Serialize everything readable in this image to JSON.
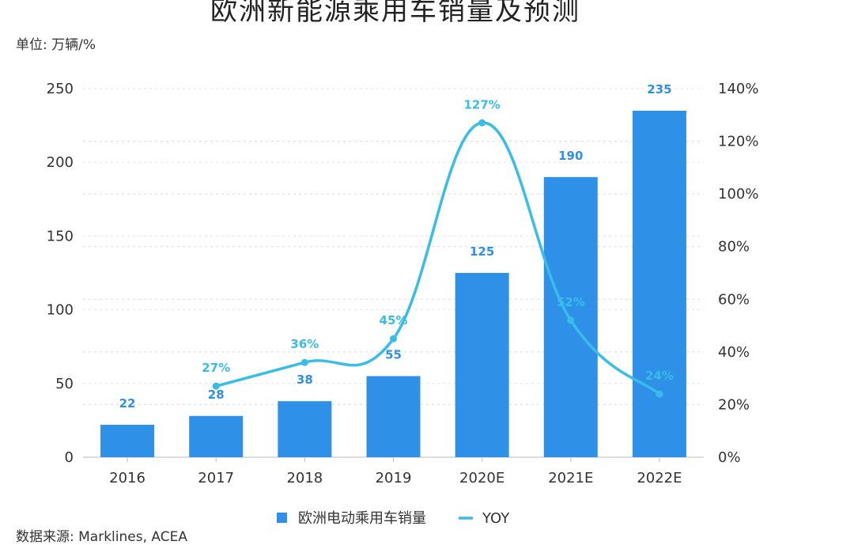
{
  "chart_data": {
    "type": "bar",
    "title": "欧洲新能源乘用车销量及预测",
    "unit": "单位: 万辆/%",
    "source": "数据来源: Marklines, ACEA",
    "categories": [
      "2016",
      "2017",
      "2018",
      "2019",
      "2020E",
      "2021E",
      "2022E"
    ],
    "series": [
      {
        "name": "欧洲电动乘用车销量",
        "type": "bar",
        "axis": "left",
        "color": "#2f90e8",
        "values": [
          22,
          28,
          38,
          55,
          125,
          190,
          235
        ],
        "labels": [
          "22",
          "28",
          "38",
          "55",
          "125",
          "190",
          "235"
        ]
      },
      {
        "name": "YOY",
        "type": "line",
        "axis": "right",
        "color": "#38bde8",
        "values": [
          null,
          27,
          36,
          45,
          127,
          52,
          24
        ],
        "labels": [
          "",
          "27%",
          "36%",
          "45%",
          "127%",
          "52%",
          "24%"
        ]
      }
    ],
    "y_left": {
      "range": [
        0,
        250
      ],
      "ticks": [
        "0",
        "50",
        "100",
        "150",
        "200",
        "250"
      ]
    },
    "y_right": {
      "range": [
        0,
        140
      ],
      "ticks": [
        "0%",
        "20%",
        "40%",
        "60%",
        "80%",
        "100%",
        "120%",
        "140%"
      ]
    },
    "grid": true,
    "legend": "bottom"
  }
}
